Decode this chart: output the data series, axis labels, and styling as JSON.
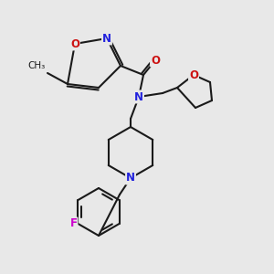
{
  "background_color": "#e8e8e8",
  "bond_color": "#1a1a1a",
  "atom_colors": {
    "N": "#2222dd",
    "O": "#cc1111",
    "F": "#cc00cc"
  },
  "line_width": 1.5,
  "figsize": [
    3.0,
    3.0
  ],
  "dpi": 100
}
